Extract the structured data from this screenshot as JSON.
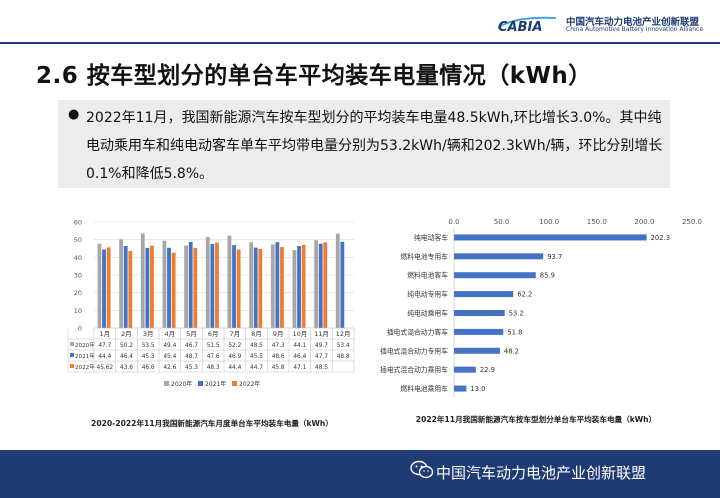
{
  "header": {
    "logo_text": "CABIA",
    "org_name_cn": "中国汽车动力电池产业创新联盟",
    "org_name_en": "China Automotive Battery Innovation Alliance"
  },
  "page_title": "2.6 按车型划分的单台车平均装车电量情况（kWh）",
  "summary": {
    "bullet": "●",
    "text": "2022年11月，我国新能源汽车按车型划分的平均装车电量48.5kWh,环比增长3.0%。其中纯电动乘用车和纯电动客车单车平均带电量分别为53.2kWh/辆和202.3kWh/辆，环比分别增长0.1%和降低5.8%。"
  },
  "chart_data": [
    {
      "type": "bar",
      "title": "2020-2022年11月我国新能源汽车月度单台车平均装车电量（kWh）",
      "categories": [
        "1月",
        "2月",
        "3月",
        "4月",
        "5月",
        "6月",
        "7月",
        "8月",
        "9月",
        "10月",
        "11月",
        "12月"
      ],
      "ylim": [
        0,
        60
      ],
      "yticks": [
        0,
        10,
        20,
        30,
        40,
        50,
        60
      ],
      "series": [
        {
          "name": "2020年",
          "color": "#a6a6a6",
          "values": [
            47.7,
            50.2,
            53.5,
            49.4,
            46.7,
            51.5,
            52.2,
            48.5,
            47.3,
            44.1,
            49.7,
            53.4
          ]
        },
        {
          "name": "2021年",
          "color": "#4472c4",
          "values": [
            44.4,
            46.4,
            45.3,
            45.4,
            48.7,
            47.6,
            46.9,
            45.5,
            48.6,
            46.4,
            47.7,
            48.8
          ]
        },
        {
          "name": "2022年",
          "color": "#ed7d31",
          "values": [
            45.62,
            43.6,
            46.6,
            42.6,
            45.3,
            48.3,
            44.4,
            44.7,
            45.8,
            47.1,
            48.5,
            null
          ]
        }
      ],
      "legend_position": "bottom",
      "table_below": true
    },
    {
      "type": "bar",
      "orientation": "horizontal",
      "title": "2022年11月我国新能源汽车按车型划分单台车平均装车电量（kWh）",
      "categories": [
        "纯电动客车",
        "燃料电池专用车",
        "燃料电池客车",
        "纯电动专用车",
        "纯电动乘用车",
        "插电式混合动力客车",
        "插电式混合动力专用车",
        "插电式混合动力乘用车",
        "燃料电池乘用车"
      ],
      "values": [
        202.3,
        93.7,
        85.9,
        62.2,
        53.2,
        51.8,
        48.2,
        22.9,
        13.0
      ],
      "value_labels": [
        "202.3",
        "93.7",
        "85.9",
        "62.2",
        "53.2",
        "51.8",
        "48.2",
        "22.9",
        "13.0"
      ],
      "xlim": [
        0,
        250
      ],
      "xticks": [
        "0.0",
        "50.0",
        "100.0",
        "150.0",
        "200.0",
        "250.0"
      ],
      "color": "#4472c4"
    }
  ],
  "footer": {
    "text": "中国汽车动力电池产业创新联盟",
    "icon": "wechat-icon"
  }
}
